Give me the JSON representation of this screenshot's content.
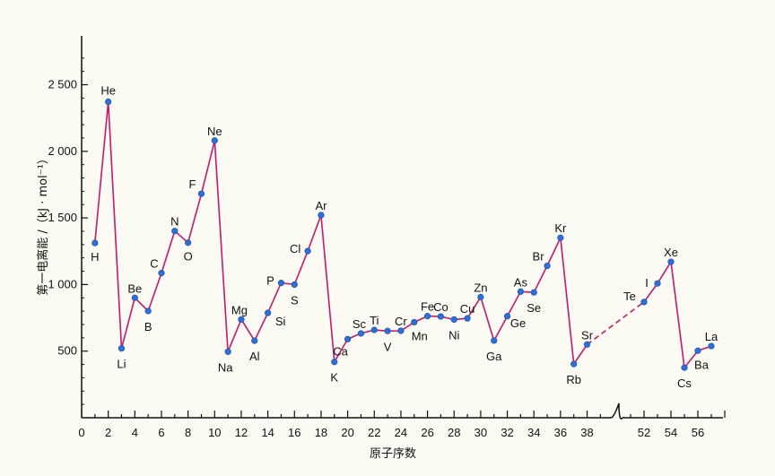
{
  "chart_data": {
    "type": "line",
    "xlabel": "原子序数",
    "ylabel": "第一电离能 /（kJ · mol⁻¹）",
    "ylim": [
      0,
      2800
    ],
    "yticks": [
      500,
      1000,
      1500,
      2000,
      2500
    ],
    "ytick_labels": [
      "500",
      "1 000",
      "1 500",
      "2 000",
      "2 500"
    ],
    "xticks_left": [
      "0",
      "2",
      "4",
      "6",
      "8",
      "10",
      "12",
      "14",
      "16",
      "18",
      "20",
      "22",
      "24",
      "26",
      "28",
      "30",
      "32",
      "34",
      "36",
      "38"
    ],
    "xticks_right": [
      "52",
      "54",
      "56"
    ],
    "axis_break": "after 38",
    "colors": {
      "line": "#c8186a",
      "marker": "#2c6fd8",
      "axis": "#111111"
    },
    "series": [
      {
        "segment": "1-38",
        "points": [
          {
            "x": 1,
            "y": 1312,
            "label": "H"
          },
          {
            "x": 2,
            "y": 2372,
            "label": "He"
          },
          {
            "x": 3,
            "y": 520,
            "label": "Li"
          },
          {
            "x": 4,
            "y": 900,
            "label": "Be"
          },
          {
            "x": 5,
            "y": 801,
            "label": "B"
          },
          {
            "x": 6,
            "y": 1086,
            "label": "C"
          },
          {
            "x": 7,
            "y": 1402,
            "label": "N"
          },
          {
            "x": 8,
            "y": 1314,
            "label": "O"
          },
          {
            "x": 9,
            "y": 1681,
            "label": "F"
          },
          {
            "x": 10,
            "y": 2081,
            "label": "Ne"
          },
          {
            "x": 11,
            "y": 496,
            "label": "Na"
          },
          {
            "x": 12,
            "y": 738,
            "label": "Mg"
          },
          {
            "x": 13,
            "y": 578,
            "label": "Al"
          },
          {
            "x": 14,
            "y": 787,
            "label": "Si"
          },
          {
            "x": 15,
            "y": 1012,
            "label": "P"
          },
          {
            "x": 16,
            "y": 1000,
            "label": "S"
          },
          {
            "x": 17,
            "y": 1251,
            "label": "Cl"
          },
          {
            "x": 18,
            "y": 1521,
            "label": "Ar"
          },
          {
            "x": 19,
            "y": 419,
            "label": "K"
          },
          {
            "x": 20,
            "y": 590,
            "label": "Ca"
          },
          {
            "x": 21,
            "y": 633,
            "label": "Sc"
          },
          {
            "x": 22,
            "y": 659,
            "label": "Ti"
          },
          {
            "x": 23,
            "y": 651,
            "label": "V"
          },
          {
            "x": 24,
            "y": 653,
            "label": "Cr"
          },
          {
            "x": 25,
            "y": 717,
            "label": "Mn"
          },
          {
            "x": 26,
            "y": 763,
            "label": "Fe"
          },
          {
            "x": 27,
            "y": 760,
            "label": "Co"
          },
          {
            "x": 28,
            "y": 737,
            "label": "Ni"
          },
          {
            "x": 29,
            "y": 746,
            "label": "Cu"
          },
          {
            "x": 30,
            "y": 906,
            "label": "Zn"
          },
          {
            "x": 31,
            "y": 579,
            "label": "Ga"
          },
          {
            "x": 32,
            "y": 762,
            "label": "Ge"
          },
          {
            "x": 33,
            "y": 947,
            "label": "As"
          },
          {
            "x": 34,
            "y": 941,
            "label": "Se"
          },
          {
            "x": 35,
            "y": 1140,
            "label": "Br"
          },
          {
            "x": 36,
            "y": 1351,
            "label": "Kr"
          },
          {
            "x": 37,
            "y": 403,
            "label": "Rb"
          },
          {
            "x": 38,
            "y": 550,
            "label": "Sr"
          }
        ]
      },
      {
        "segment": "52-57",
        "points": [
          {
            "x": 52,
            "y": 869,
            "label": "Te"
          },
          {
            "x": 53,
            "y": 1008,
            "label": "I"
          },
          {
            "x": 54,
            "y": 1170,
            "label": "Xe"
          },
          {
            "x": 55,
            "y": 376,
            "label": "Cs"
          },
          {
            "x": 56,
            "y": 503,
            "label": "Ba"
          },
          {
            "x": 57,
            "y": 538,
            "label": "La"
          }
        ]
      }
    ],
    "dashed_connection": {
      "from": 38,
      "to": 52
    }
  }
}
